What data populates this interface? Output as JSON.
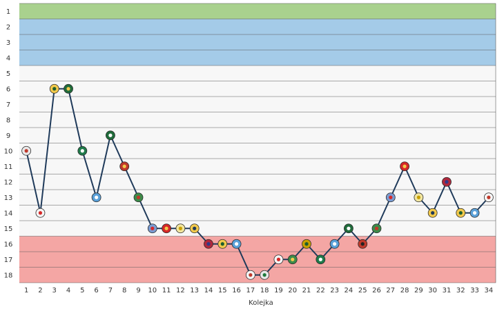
{
  "chart_data": {
    "type": "line",
    "xlabel": "Kolejka",
    "ylabel": "",
    "x": [
      1,
      2,
      3,
      4,
      5,
      6,
      7,
      8,
      9,
      10,
      11,
      12,
      13,
      14,
      15,
      16,
      17,
      18,
      19,
      20,
      21,
      22,
      23,
      24,
      25,
      26,
      27,
      28,
      29,
      30,
      31,
      32,
      33,
      34
    ],
    "y_ticks": [
      1,
      2,
      3,
      4,
      5,
      6,
      7,
      8,
      9,
      10,
      11,
      12,
      13,
      14,
      15,
      16,
      17,
      18
    ],
    "ylim": [
      1,
      18
    ],
    "y_inverted": true,
    "grid": true,
    "series": [
      {
        "values": [
          10,
          14,
          6,
          6,
          10,
          13,
          9,
          11,
          13,
          15,
          15,
          15,
          15,
          16,
          16,
          16,
          18,
          18,
          17,
          17,
          16,
          17,
          16,
          15,
          16,
          15,
          13,
          11,
          13,
          14,
          12,
          14,
          14,
          13
        ],
        "color": "#1f3a5a"
      }
    ],
    "zones": [
      {
        "from": 1,
        "to": 1,
        "color": "#a9d18e"
      },
      {
        "from": 2,
        "to": 4,
        "color": "#a4cbe8"
      },
      {
        "from": 16,
        "to": 18,
        "color": "#f4a6a4"
      }
    ],
    "crests": [
      {
        "color": "#e8e8e8",
        "accent": "#c0392b"
      },
      {
        "color": "#f5f5f5",
        "accent": "#d62828"
      },
      {
        "color": "#f2c94c",
        "accent": "#1d5e2e"
      },
      {
        "color": "#1f6b3a",
        "accent": "#f2c94c"
      },
      {
        "color": "#1f7a4a",
        "accent": "#ffffff"
      },
      {
        "color": "#5aa0d8",
        "accent": "#ffffff"
      },
      {
        "color": "#1f6b3a",
        "accent": "#ffffff"
      },
      {
        "color": "#c0392b",
        "accent": "#f2c94c"
      },
      {
        "color": "#3c8b4a",
        "accent": "#c0392b"
      },
      {
        "color": "#7a9bd1",
        "accent": "#d62828"
      },
      {
        "color": "#d62828",
        "accent": "#f2c94c"
      },
      {
        "color": "#f2e6a0",
        "accent": "#c8a000"
      },
      {
        "color": "#f2c94c",
        "accent": "#1f3a5a"
      },
      {
        "color": "#b0283c",
        "accent": "#2f3a8a"
      },
      {
        "color": "#f2c94c",
        "accent": "#1d5e2e"
      },
      {
        "color": "#5aa0d8",
        "accent": "#ffffff"
      },
      {
        "color": "#f5f5f5",
        "accent": "#c0392b"
      },
      {
        "color": "#e8e8e8",
        "accent": "#1d7a3a"
      },
      {
        "color": "#f5f5f5",
        "accent": "#d62828"
      },
      {
        "color": "#3c8b4a",
        "accent": "#f2c94c"
      },
      {
        "color": "#c8a000",
        "accent": "#1d5e2e"
      },
      {
        "color": "#1f7a4a",
        "accent": "#ffffff"
      },
      {
        "color": "#5aa0d8",
        "accent": "#ffffff"
      },
      {
        "color": "#1f6b3a",
        "accent": "#ffffff"
      },
      {
        "color": "#c0392b",
        "accent": "#222222"
      },
      {
        "color": "#3c8b4a",
        "accent": "#c0392b"
      },
      {
        "color": "#7a9bd1",
        "accent": "#d62828"
      },
      {
        "color": "#d62828",
        "accent": "#f2c94c"
      },
      {
        "color": "#f2e6a0",
        "accent": "#c8a000"
      },
      {
        "color": "#f2c94c",
        "accent": "#1f3a5a"
      },
      {
        "color": "#b0283c",
        "accent": "#2f3a8a"
      },
      {
        "color": "#f2c94c",
        "accent": "#1d5e2e"
      },
      {
        "color": "#5aa0d8",
        "accent": "#ffffff"
      },
      {
        "color": "#f5f5f5",
        "accent": "#c0392b"
      }
    ]
  }
}
